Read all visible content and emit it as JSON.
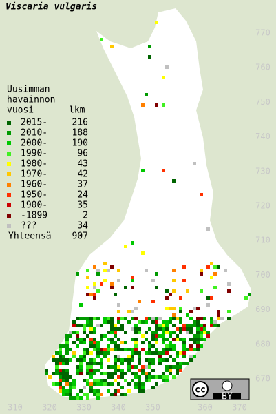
{
  "title": "Viscaria vulgaris",
  "legend": {
    "heading": [
      "Uusimman",
      "havainnon",
      "vuosi"
    ],
    "count_heading": "lkm",
    "rows": [
      {
        "label": "2015-",
        "count": 216,
        "color": "#006400"
      },
      {
        "label": "2010-",
        "count": 188,
        "color": "#009a00"
      },
      {
        "label": "2000-",
        "count": 190,
        "color": "#00c800"
      },
      {
        "label": "1990-",
        "count": 96,
        "color": "#40f020"
      },
      {
        "label": "1980-",
        "count": 43,
        "color": "#ffff00"
      },
      {
        "label": "1970-",
        "count": 42,
        "color": "#ffc800"
      },
      {
        "label": "1960-",
        "count": 37,
        "color": "#ff8000"
      },
      {
        "label": "1950-",
        "count": 24,
        "color": "#ff3000"
      },
      {
        "label": "1900-",
        "count": 35,
        "color": "#cc0000"
      },
      {
        "label": "-1899",
        "count": 2,
        "color": "#800000"
      },
      {
        "label": "???",
        "count": 34,
        "color": "#c0c0c0"
      }
    ],
    "total": {
      "label": "Yhteensä",
      "count": 907
    }
  },
  "x_labels": [
    "310",
    "320",
    "330",
    "340",
    "350",
    "360",
    "370"
  ],
  "y_labels": [
    "670",
    "680",
    "690",
    "700",
    "710",
    "720",
    "730",
    "740",
    "750",
    "760",
    "770"
  ],
  "license": {
    "icon": "cc",
    "label": "BY"
  }
}
